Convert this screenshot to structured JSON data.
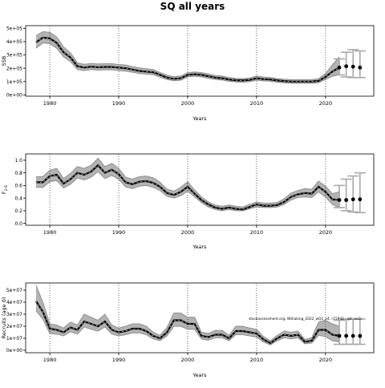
{
  "figure": {
    "title": "SQ all years",
    "watermark": "stockassessment.org, NShaking_2022_wQ1_v4, r15942 ; git: ec2c"
  },
  "chart_data": [
    {
      "type": "line",
      "title": "",
      "xlabel": "Years",
      "ylabel": "SSB",
      "xlim": [
        1976.5,
        2027
      ],
      "ylim": [
        -10000,
        520000
      ],
      "xticks": [
        1980,
        1990,
        2000,
        2010,
        2020
      ],
      "yticks": [
        0,
        100000,
        200000,
        300000,
        400000,
        500000
      ],
      "ytick_labels": [
        "0e+00",
        "1e+05",
        "2e+05",
        "3e+05",
        "4e+05",
        "5e+05"
      ],
      "grid": "vertical dotted",
      "x": [
        1978,
        1979,
        1980,
        1981,
        1982,
        1983,
        1984,
        1985,
        1986,
        1987,
        1988,
        1989,
        1990,
        1991,
        1992,
        1993,
        1994,
        1995,
        1996,
        1997,
        1998,
        1999,
        2000,
        2001,
        2002,
        2003,
        2004,
        2005,
        2006,
        2007,
        2008,
        2009,
        2010,
        2011,
        2012,
        2013,
        2014,
        2015,
        2016,
        2017,
        2018,
        2019,
        2020,
        2021,
        2022
      ],
      "series": [
        {
          "values": [
            395000,
            430000,
            425000,
            390000,
            320000,
            280000,
            215000,
            205000,
            212000,
            208000,
            210000,
            210000,
            205000,
            200000,
            190000,
            180000,
            175000,
            170000,
            150000,
            130000,
            120000,
            125000,
            150000,
            155000,
            150000,
            140000,
            130000,
            125000,
            115000,
            110000,
            108000,
            112000,
            125000,
            118000,
            115000,
            108000,
            103000,
            100000,
            100000,
            100000,
            100000,
            105000,
            135000,
            175000,
            205000
          ]
        },
        {
          "values": [
            350000,
            390000,
            385000,
            350000,
            285000,
            250000,
            190000,
            183000,
            190000,
            186000,
            188000,
            188000,
            183000,
            178000,
            170000,
            160000,
            156000,
            152000,
            133000,
            115000,
            106000,
            110000,
            135000,
            140000,
            135000,
            125000,
            116000,
            111000,
            102000,
            97000,
            95000,
            99000,
            110000,
            105000,
            102000,
            95000,
            90000,
            87000,
            87000,
            87000,
            87000,
            91000,
            115000,
            140000,
            150000
          ]
        },
        {
          "values": [
            445000,
            475000,
            470000,
            435000,
            360000,
            315000,
            240000,
            230000,
            236000,
            232000,
            234000,
            234000,
            228000,
            224000,
            212000,
            202000,
            196000,
            190000,
            168000,
            147000,
            136000,
            141000,
            167000,
            172000,
            167000,
            157000,
            146000,
            141000,
            130000,
            124000,
            122000,
            127000,
            142000,
            134000,
            130000,
            122000,
            117000,
            114000,
            114000,
            114000,
            114000,
            121000,
            160000,
            225000,
            285000
          ]
        }
      ],
      "forecast": {
        "x": [
          2022,
          2023,
          2024,
          2025
        ],
        "median": [
          205000,
          215000,
          212000,
          205000
        ],
        "low": [
          150000,
          135000,
          130000,
          130000
        ],
        "high": [
          270000,
          320000,
          340000,
          330000
        ]
      }
    },
    {
      "type": "line",
      "title": "",
      "xlabel": "Years",
      "ylabel": "F2-6",
      "xlim": [
        1976.5,
        2027
      ],
      "ylim": [
        -0.03,
        1.1
      ],
      "xticks": [
        1980,
        1990,
        2000,
        2010,
        2020
      ],
      "yticks": [
        0,
        0.2,
        0.4,
        0.6,
        0.8,
        1.0
      ],
      "ytick_labels": [
        "0.0",
        "0.2",
        "0.4",
        "0.6",
        "0.8",
        "1.0"
      ],
      "grid": "vertical dotted",
      "x": [
        1978,
        1979,
        1980,
        1981,
        1982,
        1983,
        1984,
        1985,
        1986,
        1987,
        1988,
        1989,
        1990,
        1991,
        1992,
        1993,
        1994,
        1995,
        1996,
        1997,
        1998,
        1999,
        2000,
        2001,
        2002,
        2003,
        2004,
        2005,
        2006,
        2007,
        2008,
        2009,
        2010,
        2011,
        2012,
        2013,
        2014,
        2015,
        2016,
        2017,
        2018,
        2019,
        2020,
        2021,
        2022
      ],
      "series": [
        {
          "values": [
            0.65,
            0.65,
            0.75,
            0.77,
            0.63,
            0.7,
            0.8,
            0.77,
            0.82,
            0.92,
            0.8,
            0.85,
            0.78,
            0.65,
            0.62,
            0.66,
            0.67,
            0.64,
            0.58,
            0.48,
            0.45,
            0.5,
            0.58,
            0.47,
            0.37,
            0.3,
            0.25,
            0.23,
            0.25,
            0.23,
            0.22,
            0.26,
            0.3,
            0.28,
            0.28,
            0.29,
            0.34,
            0.42,
            0.46,
            0.48,
            0.47,
            0.58,
            0.5,
            0.38,
            0.37
          ]
        },
        {
          "values": [
            0.57,
            0.57,
            0.66,
            0.68,
            0.56,
            0.62,
            0.72,
            0.69,
            0.73,
            0.82,
            0.71,
            0.76,
            0.7,
            0.58,
            0.55,
            0.59,
            0.6,
            0.57,
            0.52,
            0.43,
            0.4,
            0.44,
            0.51,
            0.42,
            0.33,
            0.26,
            0.22,
            0.2,
            0.22,
            0.2,
            0.2,
            0.23,
            0.26,
            0.25,
            0.25,
            0.26,
            0.3,
            0.37,
            0.41,
            0.42,
            0.41,
            0.5,
            0.42,
            0.3,
            0.25
          ]
        },
        {
          "values": [
            0.74,
            0.74,
            0.84,
            0.87,
            0.71,
            0.79,
            0.9,
            0.87,
            0.92,
            1.03,
            0.9,
            0.95,
            0.87,
            0.73,
            0.7,
            0.74,
            0.75,
            0.72,
            0.65,
            0.54,
            0.51,
            0.57,
            0.66,
            0.53,
            0.42,
            0.34,
            0.29,
            0.27,
            0.29,
            0.27,
            0.26,
            0.3,
            0.34,
            0.32,
            0.32,
            0.33,
            0.39,
            0.48,
            0.52,
            0.55,
            0.54,
            0.67,
            0.59,
            0.47,
            0.5
          ]
        }
      ],
      "forecast": {
        "x": [
          2022,
          2023,
          2024,
          2025
        ],
        "median": [
          0.37,
          0.37,
          0.38,
          0.38
        ],
        "low": [
          0.25,
          0.2,
          0.18,
          0.17
        ],
        "high": [
          0.6,
          0.7,
          0.75,
          0.8
        ]
      }
    },
    {
      "type": "line",
      "title": "",
      "xlabel": "Years",
      "ylabel": "Recruits (age 0)",
      "xlim": [
        1976.5,
        2027
      ],
      "ylim": [
        -2000000.0,
        56000000.0
      ],
      "xticks": [
        1980,
        1990,
        2000,
        2010,
        2020
      ],
      "yticks": [
        0,
        10000000,
        20000000,
        30000000,
        40000000,
        50000000
      ],
      "ytick_labels": [
        "0e+00",
        "1e+07",
        "2e+07",
        "3e+07",
        "4e+07",
        "5e+07"
      ],
      "grid": "vertical dotted",
      "x": [
        1978,
        1979,
        1980,
        1981,
        1982,
        1983,
        1984,
        1985,
        1986,
        1987,
        1988,
        1989,
        1990,
        1991,
        1992,
        1993,
        1994,
        1995,
        1996,
        1997,
        1998,
        1999,
        2000,
        2001,
        2002,
        2003,
        2004,
        2005,
        2006,
        2007,
        2008,
        2009,
        2010,
        2011,
        2012,
        2013,
        2014,
        2015,
        2016,
        2017,
        2018,
        2019,
        2020,
        2021,
        2022
      ],
      "series": [
        {
          "values": [
            41000000,
            32000000,
            18000000,
            17000000,
            15000000,
            19000000,
            17000000,
            24000000,
            22000000,
            20000000,
            24000000,
            17000000,
            15000000,
            16000000,
            18000000,
            18000000,
            16000000,
            12000000,
            10000000,
            15000000,
            25000000,
            25000000,
            22000000,
            22000000,
            12000000,
            11000000,
            13000000,
            13000000,
            10000000,
            16000000,
            16000000,
            15000000,
            14000000,
            9000000,
            6000000,
            10000000,
            13000000,
            12000000,
            13000000,
            7000000,
            8000000,
            17000000,
            17000000,
            13000000,
            12000000
          ]
        },
        {
          "values": [
            33000000,
            26000000,
            14000000,
            13500000,
            12000000,
            15500000,
            13500000,
            19500000,
            17500000,
            16000000,
            19500000,
            13500000,
            12000000,
            13000000,
            14500000,
            14500000,
            13000000,
            9500000,
            8000000,
            12000000,
            20000000,
            20000000,
            17500000,
            17500000,
            9500000,
            8500000,
            10500000,
            10500000,
            8000000,
            13000000,
            13000000,
            12000000,
            11000000,
            7000000,
            4500000,
            8000000,
            10500000,
            9500000,
            10500000,
            5500000,
            6000000,
            12500000,
            11500000,
            8000000,
            7000000
          ]
        },
        {
          "values": [
            54000000,
            40000000,
            22000000,
            21000000,
            18500000,
            23500000,
            21000000,
            30000000,
            27500000,
            25000000,
            30000000,
            21000000,
            18500000,
            20000000,
            22000000,
            22000000,
            20000000,
            15000000,
            12500000,
            19000000,
            31000000,
            31000000,
            27500000,
            27500000,
            15000000,
            14000000,
            16500000,
            16500000,
            12500000,
            20000000,
            20000000,
            18500000,
            17500000,
            11500000,
            8000000,
            12500000,
            16000000,
            15000000,
            16000000,
            9000000,
            10500000,
            23500000,
            25000000,
            22000000,
            20000000
          ]
        }
      ],
      "forecast": {
        "x": [
          2022,
          2023,
          2024,
          2025
        ],
        "median": [
          12000000,
          12000000,
          12000000,
          12000000
        ],
        "low": [
          5000000,
          5000000,
          5000000,
          5000000
        ],
        "high": [
          25000000,
          26000000,
          26000000,
          26000000
        ]
      }
    }
  ]
}
